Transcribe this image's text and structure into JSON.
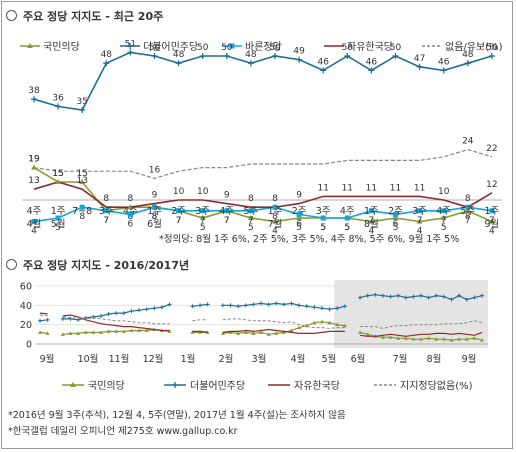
{
  "top": {
    "title": "주요 정당 지지도 - 최근 20주",
    "note": "*정의당: 8월 1주 6%, 2주 5%, 3주 5%, 4주 8%, 5주 6%, 9월 1주 5%"
  },
  "bottom": {
    "title": "주요 정당 지지도 - 2016/2017년"
  },
  "footnotes": [
    "*2016년 9월 3주(추석), 12월 4, 5주(연말), 2017년 1월 4주(설)는 조사하지 않음",
    "*한국갤럽 데일리 오피니언 제275호 www.gallup.co.kr"
  ],
  "colors": {
    "people": "#8a9a2e",
    "democratic": "#1e6e96",
    "bareun": "#14a5dc",
    "liberty": "#8b2c2c",
    "none": "#888888",
    "grid": "#dddddd",
    "highlight": "#e4e4e4"
  },
  "chart_data": [
    {
      "type": "line",
      "title": "주요 정당 지지도 - 최근 20주",
      "x_top": [
        "4주",
        "1주",
        "7~8",
        "3주",
        "4주",
        "1주",
        "2주",
        "3주",
        "4주",
        "5주",
        "1주",
        "2주",
        "3주",
        "4주",
        "1주",
        "2주",
        "3주",
        "4주",
        "5주",
        "1주"
      ],
      "x_bottom": [
        "4월",
        "5월",
        "",
        "",
        "",
        "6월",
        "",
        "",
        "",
        "",
        "7월",
        "",
        "",
        "",
        "8월",
        "",
        "",
        "",
        "",
        "9월"
      ],
      "ylim": [
        0,
        55
      ],
      "legend": "top",
      "series": [
        {
          "name": "국민의당",
          "key": "people",
          "values": [
            19,
            15,
            15,
            7,
            8,
            8,
            7,
            5,
            7,
            5,
            4,
            5,
            5,
            5,
            4,
            5,
            4,
            5,
            7,
            4
          ]
        },
        {
          "name": "더불어민주당",
          "key": "democratic",
          "values": [
            38,
            36,
            35,
            48,
            51,
            50,
            48,
            50,
            50,
            48,
            50,
            49,
            46,
            50,
            46,
            50,
            47,
            46,
            48,
            50
          ]
        },
        {
          "name": "바른정당",
          "key": "bareun",
          "values": [
            4,
            5,
            8,
            7,
            6,
            8,
            7,
            7,
            7,
            7,
            8,
            6,
            5,
            5,
            7,
            6,
            7,
            7,
            8,
            7
          ]
        },
        {
          "name": "자유한국당",
          "key": "liberty",
          "values": [
            13,
            15,
            13,
            8,
            8,
            9,
            10,
            10,
            9,
            8,
            8,
            9,
            11,
            11,
            11,
            11,
            11,
            10,
            8,
            12
          ]
        },
        {
          "name": "없음/유보(%)",
          "key": "none",
          "dashed": true,
          "values": [
            19,
            18,
            18,
            18,
            18,
            16,
            18,
            19,
            19,
            20,
            20,
            20,
            20,
            21,
            21,
            21,
            21,
            22,
            24,
            22
          ]
        }
      ]
    },
    {
      "type": "line",
      "title": "주요 정당 지지도 - 2016/2017년",
      "x_ticks": [
        "9월",
        "10월",
        "11월",
        "12월",
        "1월",
        "2월",
        "3월",
        "4월",
        "5월",
        "6월",
        "7월",
        "8월",
        "9월"
      ],
      "yticks": [
        0,
        20,
        40,
        60
      ],
      "ylim": [
        0,
        60
      ],
      "legend": "bottom",
      "series": [
        {
          "name": "국민의당",
          "key": "people",
          "values": [
            12,
            11,
            null,
            10,
            11,
            11,
            12,
            12,
            12,
            13,
            13,
            13,
            14,
            14,
            14,
            15,
            14,
            13,
            null,
            null,
            12,
            12,
            12,
            null,
            11,
            12,
            11,
            12,
            11,
            12,
            10,
            11,
            12,
            14,
            17,
            19,
            22,
            23,
            22,
            20,
            19,
            null,
            12,
            10,
            8,
            7,
            7,
            6,
            6,
            5,
            5,
            6,
            5,
            5,
            4,
            5,
            5,
            6,
            4
          ]
        },
        {
          "name": "더불어민주당",
          "key": "democratic",
          "values": [
            24,
            25,
            null,
            26,
            26,
            25,
            27,
            28,
            29,
            31,
            32,
            32,
            34,
            35,
            36,
            37,
            38,
            41,
            null,
            null,
            39,
            40,
            41,
            null,
            40,
            40,
            39,
            40,
            41,
            42,
            41,
            42,
            41,
            42,
            40,
            39,
            38,
            37,
            36,
            37,
            39,
            null,
            48,
            50,
            51,
            50,
            49,
            50,
            48,
            49,
            50,
            48,
            50,
            49,
            46,
            50,
            46,
            48,
            50
          ]
        },
        {
          "name": "자유한국당",
          "key": "liberty",
          "values": [
            32,
            31,
            null,
            29,
            30,
            28,
            25,
            23,
            21,
            20,
            19,
            18,
            18,
            17,
            16,
            15,
            14,
            14,
            null,
            null,
            13,
            13,
            12,
            null,
            12,
            13,
            13,
            14,
            13,
            14,
            15,
            14,
            13,
            12,
            11,
            11,
            11,
            12,
            13,
            13,
            13,
            null,
            9,
            8,
            8,
            9,
            10,
            9,
            8,
            9,
            10,
            10,
            11,
            11,
            10,
            11,
            10,
            9,
            12
          ]
        },
        {
          "name": "지지정당없음(%)",
          "key": "none",
          "dashed": true,
          "values": [
            30,
            29,
            null,
            28,
            27,
            27,
            26,
            27,
            26,
            25,
            24,
            24,
            23,
            22,
            22,
            21,
            21,
            21,
            null,
            null,
            24,
            25,
            25,
            null,
            25,
            26,
            26,
            25,
            24,
            24,
            24,
            23,
            22,
            23,
            20,
            18,
            17,
            17,
            16,
            17,
            17,
            null,
            18,
            18,
            18,
            16,
            18,
            19,
            19,
            20,
            20,
            20,
            20,
            21,
            21,
            21,
            22,
            24,
            22
          ]
        }
      ]
    }
  ]
}
